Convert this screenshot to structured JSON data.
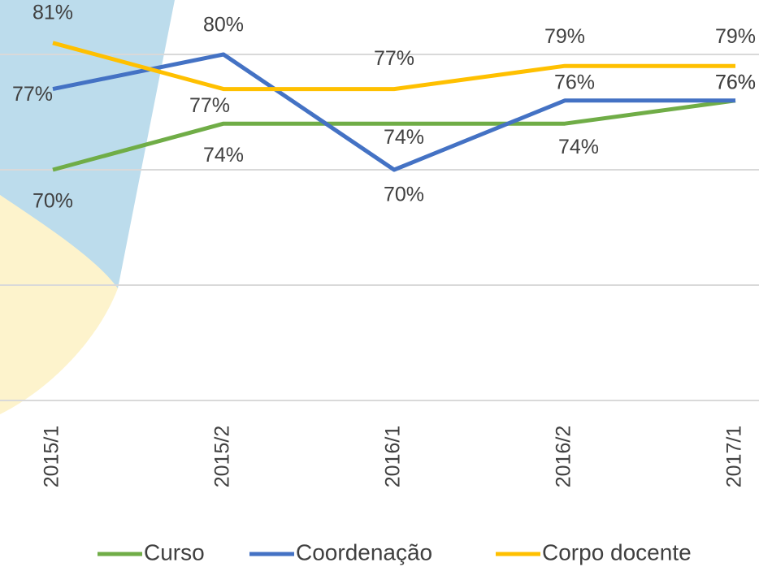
{
  "chart_data": {
    "type": "line",
    "categories": [
      "2015/1",
      "2015/2",
      "2016/1",
      "2016/2",
      "2017/1"
    ],
    "series": [
      {
        "name": "Curso",
        "color": "#70ad47",
        "values": [
          70,
          74,
          74,
          74,
          76
        ],
        "value_labels": [
          "70%",
          "74%",
          "74%",
          "74%",
          "76%"
        ]
      },
      {
        "name": "Coordenação",
        "color": "#4472c4",
        "values": [
          77,
          80,
          70,
          76,
          76
        ],
        "value_labels": [
          "77%",
          "80%",
          "70%",
          "76%",
          "76%"
        ]
      },
      {
        "name": "Corpo docente",
        "color": "#ffc000",
        "values": [
          81,
          77,
          77,
          79,
          79
        ],
        "value_labels": [
          "81%",
          "77%",
          "77%",
          "79%",
          "79%"
        ]
      }
    ],
    "ylim": [
      50,
      85
    ],
    "yticks": [
      50,
      60,
      70,
      80
    ],
    "grid": true
  }
}
